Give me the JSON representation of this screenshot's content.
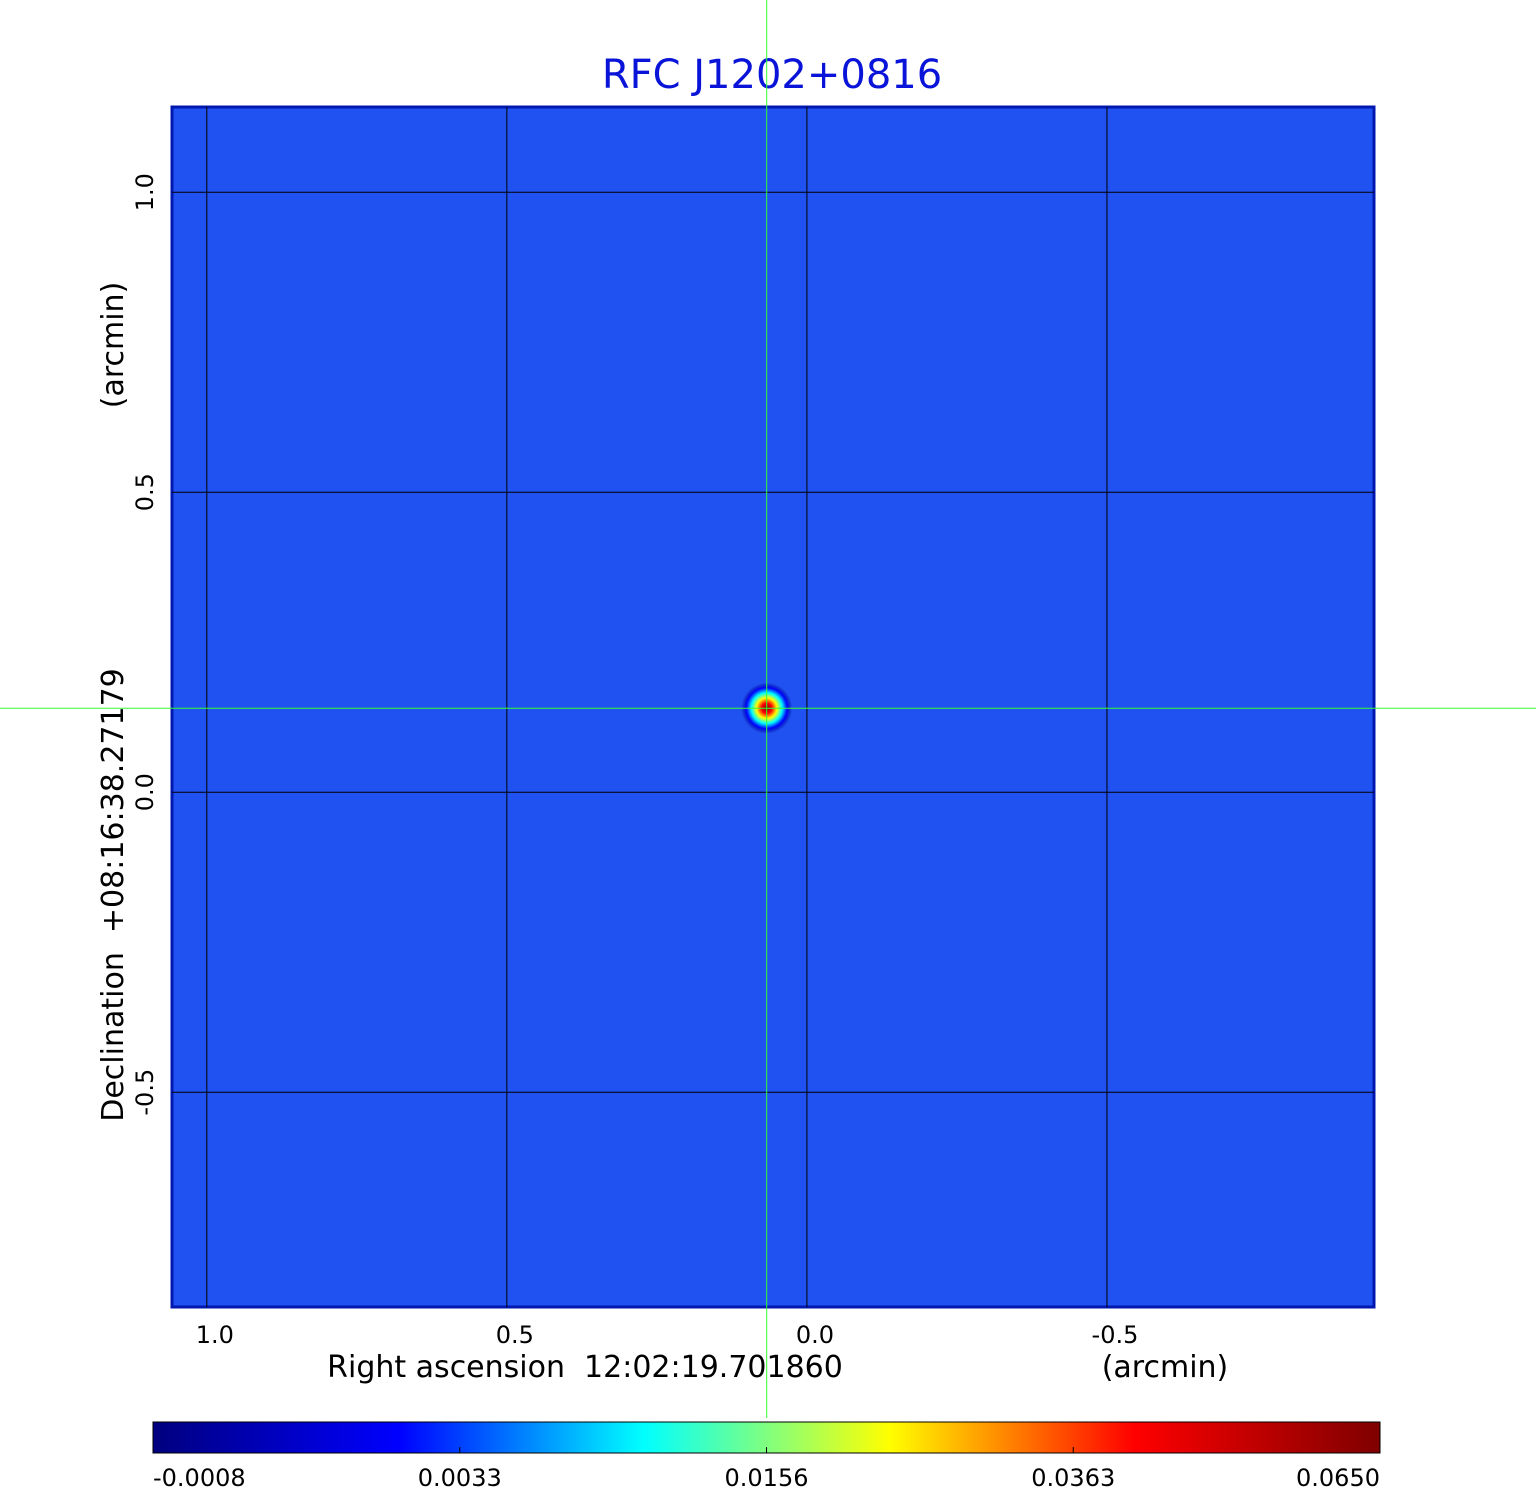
{
  "chart_data": {
    "type": "image",
    "title": "RFC J1202+0816",
    "x_label": "Right ascension  12:02:19.701860",
    "x_unit": "(arcmin)",
    "y_label": "Declination  +08:16:38.27179",
    "y_unit": "(arcmin)",
    "xlim": [
      1.058,
      -0.945
    ],
    "ylim": [
      -0.858,
      1.142
    ],
    "xticks": [
      {
        "value": 1,
        "label": "1.0"
      },
      0.5,
      {
        "value": 0,
        "label": "0.0"
      },
      -0.5
    ],
    "yticks": [
      {
        "value": 1,
        "label": "1.0"
      },
      0.5,
      {
        "value": 0,
        "label": "0.0"
      },
      -0.5
    ],
    "grid": true,
    "grid_color": "#000000",
    "background_color": "#1f52f0",
    "crosshair": {
      "x": 0.067,
      "y": 0.14,
      "color": "#33ff33"
    },
    "source": {
      "x": 0.067,
      "y": 0.14,
      "peak": 0.065
    },
    "colormap": [
      "#00007f",
      "#0000ff",
      "#00ffff",
      "#ffff00",
      "#ff0000",
      "#7f0000"
    ],
    "colorbar_ticks": [
      -0.0008,
      0.0033,
      0.0156,
      0.0363,
      {
        "value": 0.065,
        "label": "0.0650"
      }
    ],
    "title_color": "#0a14d8"
  }
}
